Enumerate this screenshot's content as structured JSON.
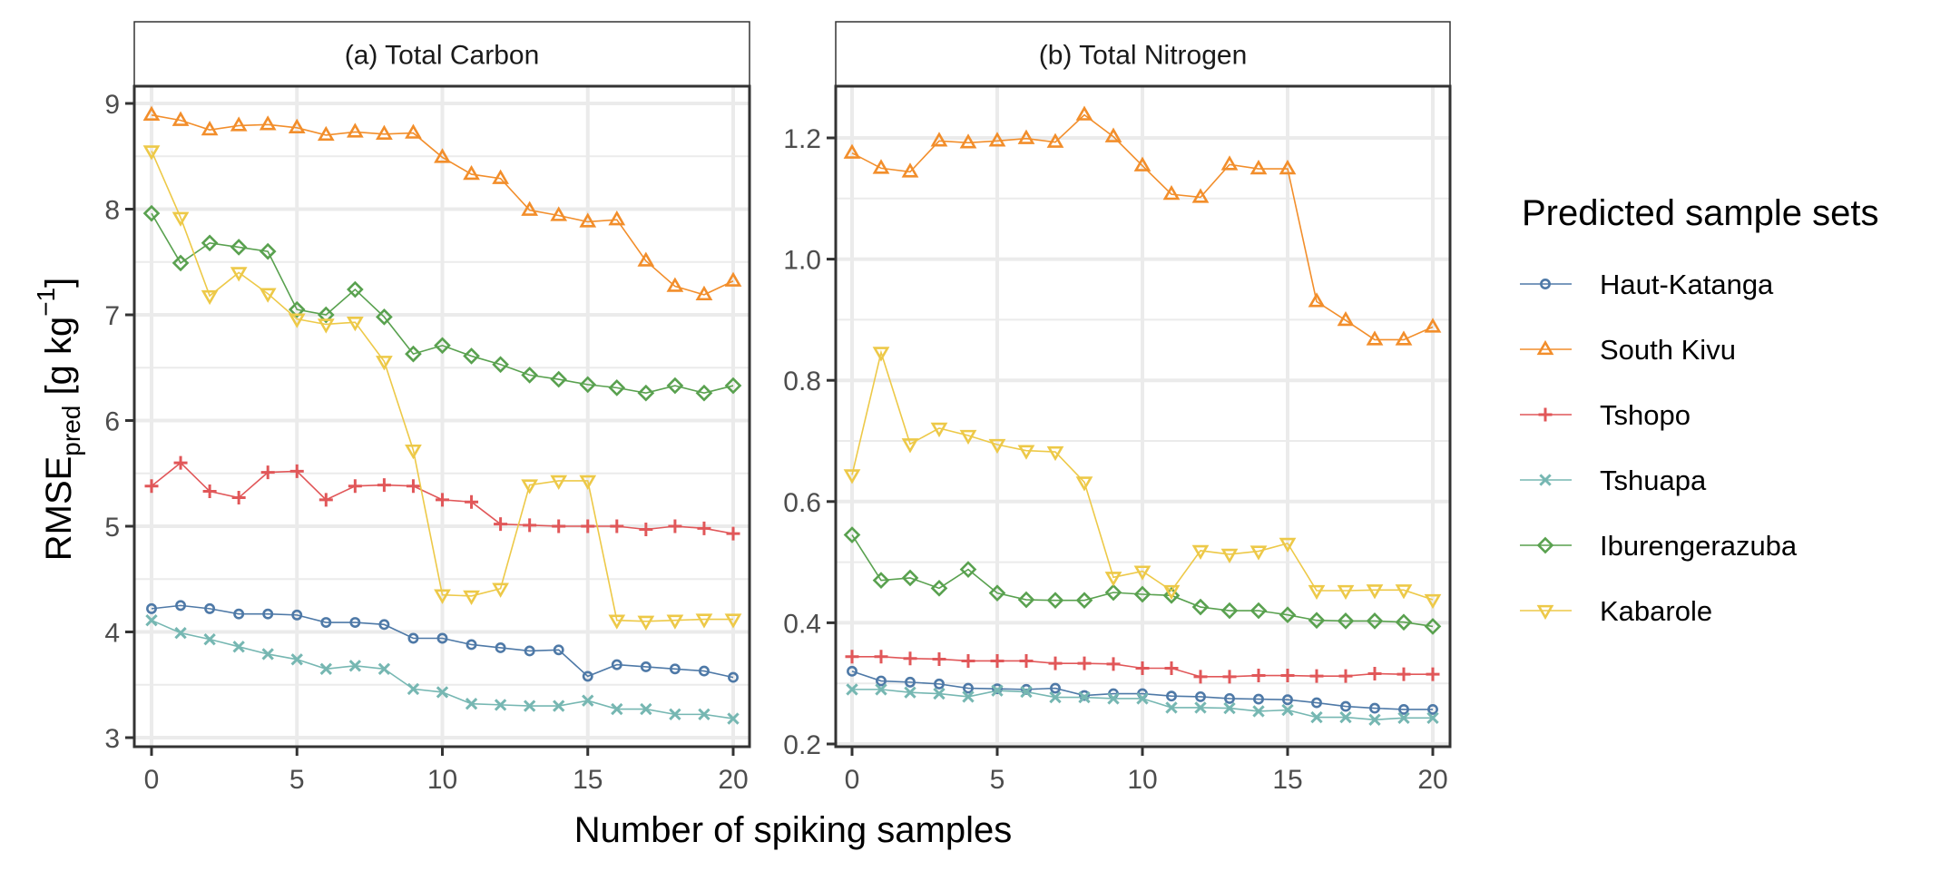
{
  "chart_data": {
    "type": "line",
    "xlabel": "Number of spiking samples",
    "ylabel": {
      "main": "RMSE",
      "subscript": "pred",
      "unit_prefix": " [g kg",
      "superscript": "−1",
      "unit_suffix": "]"
    },
    "legend": {
      "title": "Predicted sample sets",
      "placement": "right"
    },
    "grid": true,
    "x": [
      0,
      1,
      2,
      3,
      4,
      5,
      6,
      7,
      8,
      9,
      10,
      11,
      12,
      13,
      14,
      15,
      16,
      17,
      18,
      19,
      20
    ],
    "series_styles": [
      {
        "name": "Haut-Katanga",
        "color": "#4E79A7",
        "marker": "circle"
      },
      {
        "name": "South Kivu",
        "color": "#F28E2B",
        "marker": "triangle-up"
      },
      {
        "name": "Tshopo",
        "color": "#E15759",
        "marker": "plus"
      },
      {
        "name": "Tshuapa",
        "color": "#76B7B2",
        "marker": "cross"
      },
      {
        "name": "Iburengerazuba",
        "color": "#59A14F",
        "marker": "diamond"
      },
      {
        "name": "Kabarole",
        "color": "#EDC948",
        "marker": "triangle-down"
      }
    ],
    "panels": [
      {
        "title": "(a) Total Carbon",
        "xlim": [
          0,
          20
        ],
        "xticks": [
          0,
          5,
          10,
          15,
          20
        ],
        "ylim": [
          3,
          9
        ],
        "yticks": [
          3,
          4,
          5,
          6,
          7,
          8,
          9
        ],
        "ytick_labels": [
          "3",
          "4",
          "5",
          "6",
          "7",
          "8",
          "9"
        ],
        "series": [
          {
            "name": "Haut-Katanga",
            "values": [
              4.22,
              4.25,
              4.22,
              4.17,
              4.17,
              4.16,
              4.09,
              4.09,
              4.07,
              3.94,
              3.94,
              3.88,
              3.85,
              3.82,
              3.83,
              3.58,
              3.69,
              3.67,
              3.65,
              3.63,
              3.57
            ]
          },
          {
            "name": "South Kivu",
            "values": [
              8.89,
              8.84,
              8.75,
              8.79,
              8.8,
              8.77,
              8.7,
              8.73,
              8.71,
              8.72,
              8.49,
              8.33,
              8.29,
              7.99,
              7.94,
              7.88,
              7.9,
              7.51,
              7.27,
              7.19,
              7.32
            ]
          },
          {
            "name": "Tshopo",
            "values": [
              5.38,
              5.6,
              5.33,
              5.27,
              5.51,
              5.52,
              5.25,
              5.38,
              5.39,
              5.38,
              5.25,
              5.23,
              5.02,
              5.01,
              5.0,
              5.0,
              5.0,
              4.97,
              5.0,
              4.98,
              4.93
            ]
          },
          {
            "name": "Tshuapa",
            "values": [
              4.11,
              3.99,
              3.93,
              3.86,
              3.79,
              3.74,
              3.65,
              3.68,
              3.65,
              3.46,
              3.43,
              3.32,
              3.31,
              3.3,
              3.3,
              3.35,
              3.27,
              3.27,
              3.22,
              3.22,
              3.18
            ]
          },
          {
            "name": "Iburengerazuba",
            "values": [
              7.96,
              7.49,
              7.68,
              7.64,
              7.6,
              7.05,
              7.0,
              7.24,
              6.98,
              6.63,
              6.71,
              6.61,
              6.53,
              6.43,
              6.39,
              6.34,
              6.31,
              6.26,
              6.33,
              6.26,
              6.33
            ]
          },
          {
            "name": "Kabarole",
            "values": [
              8.55,
              7.92,
              7.18,
              7.4,
              7.2,
              6.96,
              6.91,
              6.93,
              6.56,
              5.72,
              4.35,
              4.34,
              4.41,
              5.39,
              5.43,
              5.43,
              4.11,
              4.1,
              4.11,
              4.12,
              4.12
            ]
          }
        ]
      },
      {
        "title": "(b) Total Nitrogen",
        "xlim": [
          0,
          20
        ],
        "xticks": [
          0,
          5,
          10,
          15,
          20
        ],
        "ylim": [
          0.2,
          1.2
        ],
        "yticks": [
          0.2,
          0.4,
          0.6,
          0.8,
          1.0,
          1.2
        ],
        "ytick_labels": [
          "0.2",
          "0.4",
          "0.6",
          "0.8",
          "1.0",
          "1.2"
        ],
        "series": [
          {
            "name": "Haut-Katanga",
            "values": [
              0.32,
              0.304,
              0.302,
              0.299,
              0.292,
              0.291,
              0.29,
              0.292,
              0.28,
              0.283,
              0.283,
              0.279,
              0.278,
              0.275,
              0.274,
              0.273,
              0.268,
              0.262,
              0.259,
              0.257,
              0.257
            ]
          },
          {
            "name": "South Kivu",
            "values": [
              1.175,
              1.15,
              1.144,
              1.195,
              1.192,
              1.195,
              1.199,
              1.193,
              1.238,
              1.202,
              1.154,
              1.107,
              1.102,
              1.156,
              1.149,
              1.149,
              0.93,
              0.899,
              0.867,
              0.867,
              0.888
            ]
          },
          {
            "name": "Tshopo",
            "values": [
              0.344,
              0.344,
              0.341,
              0.34,
              0.337,
              0.337,
              0.337,
              0.333,
              0.333,
              0.332,
              0.325,
              0.325,
              0.311,
              0.311,
              0.313,
              0.313,
              0.312,
              0.312,
              0.316,
              0.315,
              0.315
            ]
          },
          {
            "name": "Tshuapa",
            "values": [
              0.29,
              0.29,
              0.285,
              0.283,
              0.278,
              0.288,
              0.286,
              0.277,
              0.277,
              0.275,
              0.275,
              0.26,
              0.26,
              0.259,
              0.254,
              0.256,
              0.244,
              0.244,
              0.24,
              0.243,
              0.243
            ]
          },
          {
            "name": "Iburengerazuba",
            "values": [
              0.545,
              0.47,
              0.474,
              0.457,
              0.488,
              0.449,
              0.438,
              0.437,
              0.437,
              0.45,
              0.447,
              0.445,
              0.426,
              0.42,
              0.42,
              0.413,
              0.404,
              0.403,
              0.403,
              0.401,
              0.394
            ]
          },
          {
            "name": "Kabarole",
            "values": [
              0.644,
              0.846,
              0.695,
              0.721,
              0.709,
              0.694,
              0.684,
              0.682,
              0.632,
              0.475,
              0.485,
              0.453,
              0.519,
              0.513,
              0.518,
              0.531,
              0.453,
              0.453,
              0.454,
              0.454,
              0.438
            ]
          }
        ]
      }
    ]
  }
}
